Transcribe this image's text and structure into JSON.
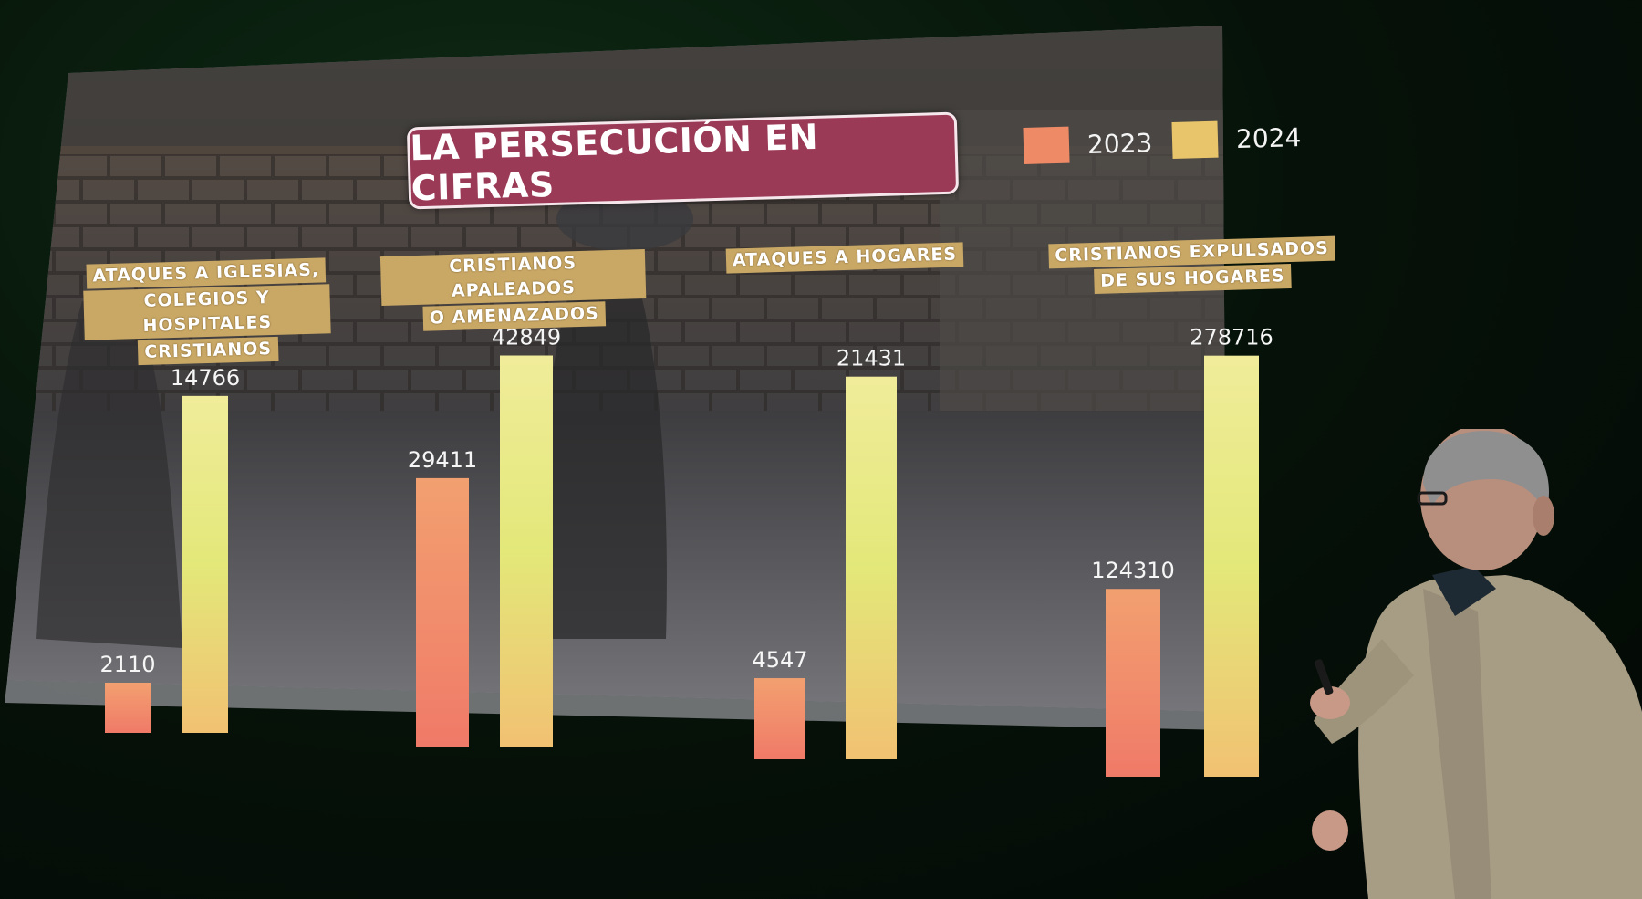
{
  "slide": {
    "title": "LA PERSECUCIÓN EN CIFRAS"
  },
  "legend": [
    {
      "label": "2023",
      "color": "#ef8a66"
    },
    {
      "label": "2024",
      "color": "#e8c56a"
    }
  ],
  "categories": [
    {
      "lines": [
        "ATAQUES A IGLESIAS,",
        "COLEGIOS Y HOSPITALES",
        "CRISTIANOS"
      ]
    },
    {
      "lines": [
        "CRISTIANOS APALEADOS",
        "O AMENAZADOS"
      ]
    },
    {
      "lines": [
        "ATAQUES A HOGARES"
      ]
    },
    {
      "lines": [
        "CRISTIANOS EXPULSADOS",
        "DE SUS HOGARES"
      ]
    }
  ],
  "chart_data": {
    "type": "bar",
    "title": "LA PERSECUCIÓN EN CIFRAS",
    "categories": [
      "ATAQUES A IGLESIAS, COLEGIOS Y HOSPITALES CRISTIANOS",
      "CRISTIANOS APALEADOS O AMENAZADOS",
      "ATAQUES A HOGARES",
      "CRISTIANOS EXPULSADOS DE SUS HOGARES"
    ],
    "series": [
      {
        "name": "2023",
        "values": [
          2110,
          29411,
          4547,
          124310
        ]
      },
      {
        "name": "2024",
        "values": [
          14766,
          42849,
          21431,
          278716
        ]
      }
    ],
    "data_labels": [
      [
        "2110",
        "29411",
        "4547",
        "124310"
      ],
      [
        "14766",
        "42849",
        "21431",
        "278716"
      ]
    ],
    "legend_position": "top-right",
    "grid": false,
    "axes_visible": false
  }
}
